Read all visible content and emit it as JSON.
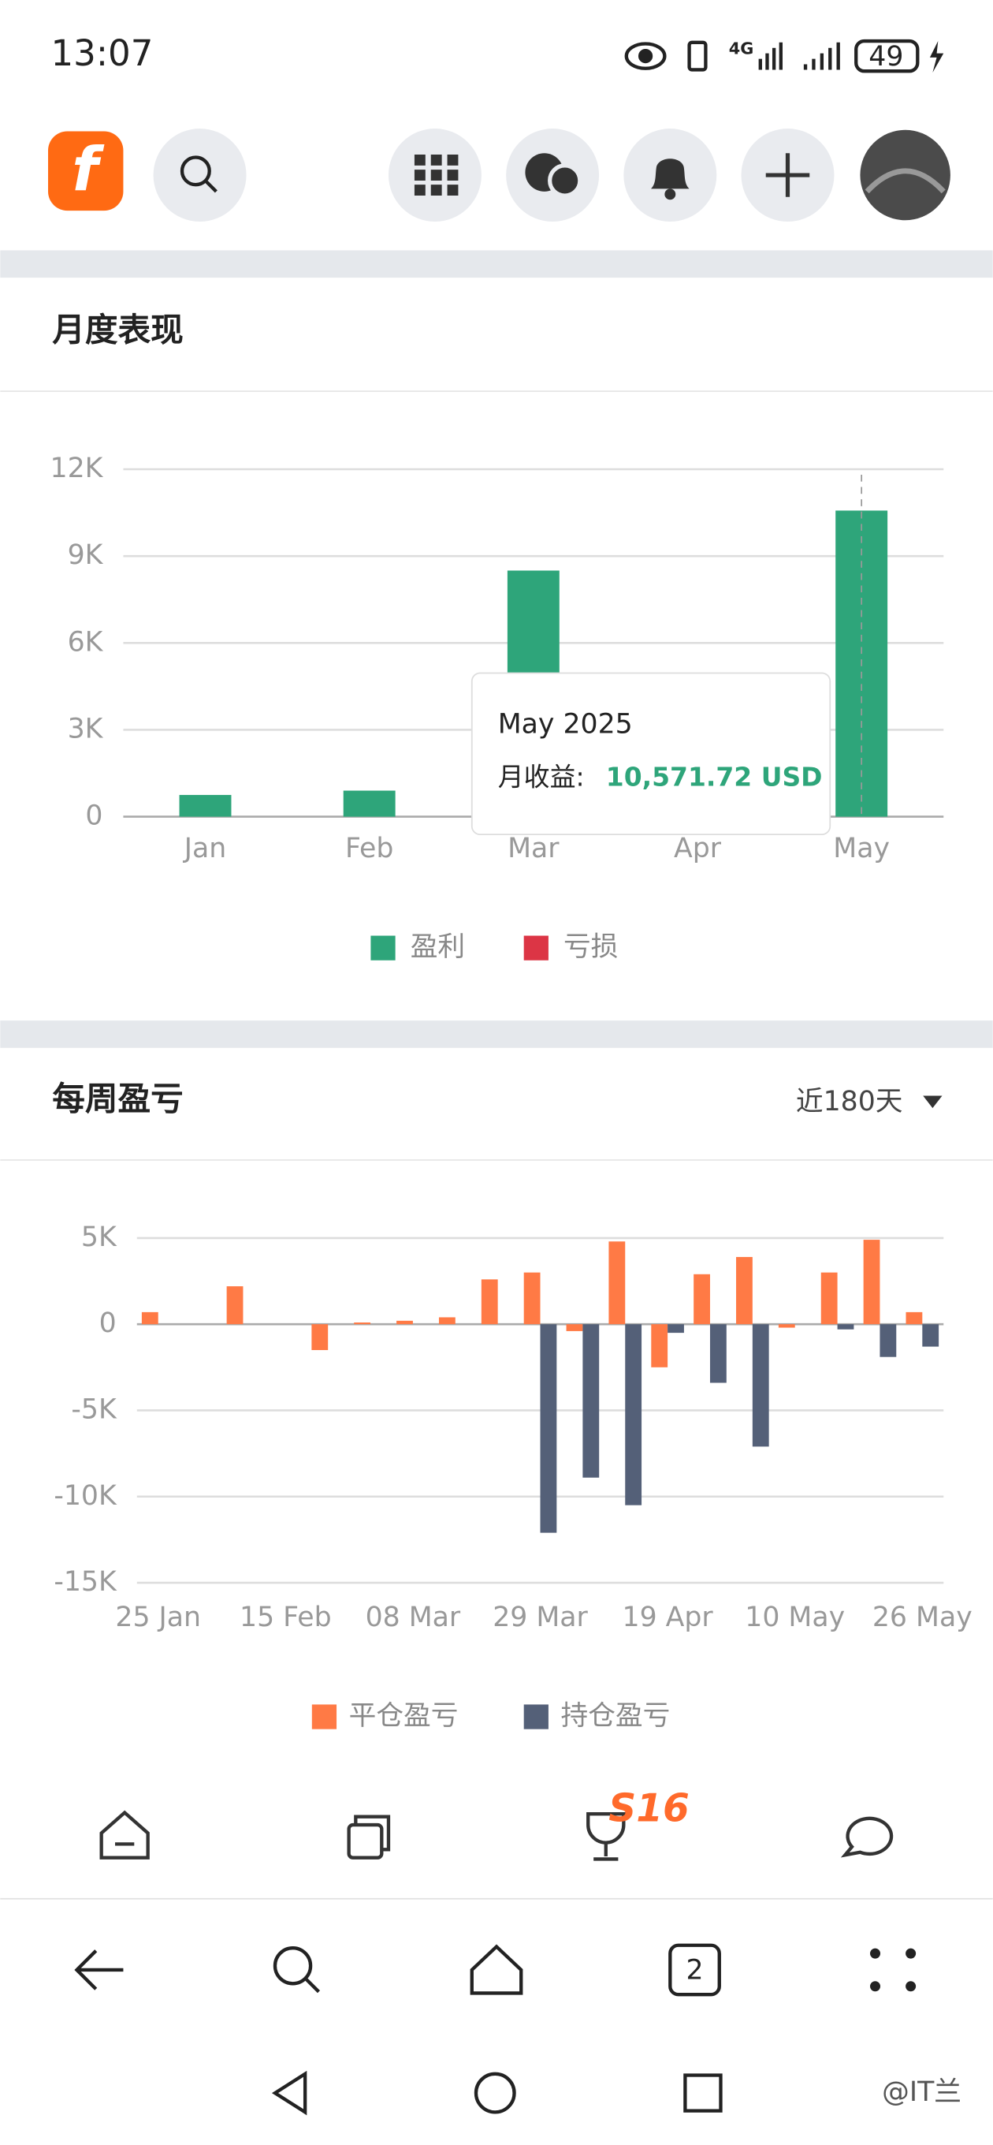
{
  "status_bar": {
    "time": "13:07",
    "network": "4G",
    "battery": "49"
  },
  "header": {
    "logo": "f"
  },
  "sections": [
    {
      "title": "月度表现"
    },
    {
      "title": "每周盈亏",
      "dropdown": "近180天"
    }
  ],
  "chart_data": [
    {
      "type": "bar",
      "categories": [
        "Jan",
        "Feb",
        "Mar",
        "Apr",
        "May"
      ],
      "values": [
        750,
        900,
        8500,
        0,
        10571.72
      ],
      "ylim": [
        0,
        12000
      ],
      "yticks": [
        0,
        {
          "value": 3000,
          "label": "3K"
        },
        {
          "value": 6000,
          "label": "6K"
        },
        {
          "value": 9000,
          "label": "9K"
        },
        {
          "value": 12000,
          "label": "12K"
        }
      ],
      "grid": true,
      "legend": [
        {
          "name": "盈利",
          "color": "#2ea57a"
        },
        {
          "name": "亏损",
          "color": "#dc3545"
        }
      ],
      "tooltip": {
        "title": "May 2025",
        "label": "月收益:",
        "value_text": "10,571.72 USD"
      }
    },
    {
      "type": "bar",
      "categories": [
        "25 Jan",
        null,
        null,
        "15 Feb",
        null,
        null,
        "08 Mar",
        null,
        null,
        "29 Mar",
        null,
        null,
        "19 Apr",
        null,
        null,
        "10 May",
        null,
        null,
        "26 May"
      ],
      "series": [
        {
          "name": "平仓盈亏",
          "color": "#ff7a45",
          "values": [
            700,
            0,
            2200,
            0,
            -1500,
            100,
            200,
            400,
            2600,
            3000,
            -400,
            4800,
            -2500,
            2900,
            3900,
            -200,
            3000,
            4900,
            700
          ]
        },
        {
          "name": "持仓盈亏",
          "color": "#546078",
          "values": [
            0,
            0,
            0,
            0,
            0,
            0,
            0,
            0,
            0,
            -12100,
            -8900,
            -10500,
            -500,
            -3400,
            -7100,
            0,
            -300,
            -1900,
            -1300
          ]
        }
      ],
      "ylim": [
        -15000,
        5000
      ],
      "yticks": [
        {
          "value": 5000,
          "label": "5K"
        },
        0,
        {
          "value": -5000,
          "label": "-5K"
        },
        {
          "value": -10000,
          "label": "-10K"
        },
        {
          "value": -15000,
          "label": "-15K"
        }
      ],
      "grid": true
    }
  ],
  "bottom_nav": {
    "badge": "S16"
  },
  "browser_bar": {
    "tab_count": "2"
  },
  "watermark": "@IT兰"
}
